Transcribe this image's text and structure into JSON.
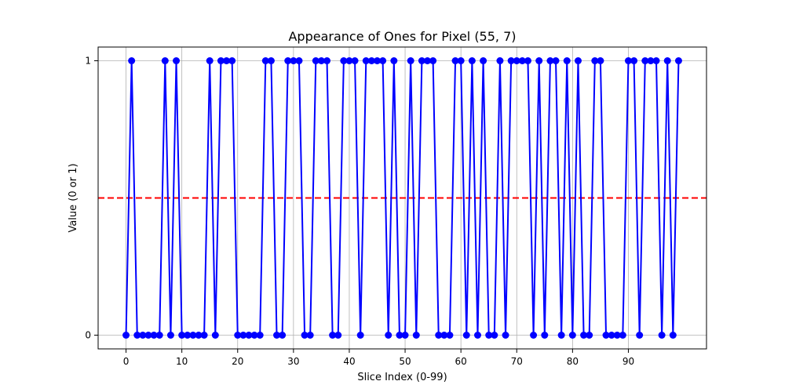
{
  "chart_data": {
    "type": "line",
    "title": "Appearance of Ones for Pixel (55, 7)",
    "xlabel": "Slice Index (0-99)",
    "ylabel": "Value (0 or 1)",
    "xlim": [
      -5,
      104
    ],
    "ylim": [
      -0.05,
      1.05
    ],
    "x_ticks": [
      0,
      10,
      20,
      30,
      40,
      50,
      60,
      70,
      80,
      90
    ],
    "y_ticks": [
      0,
      1
    ],
    "grid": true,
    "threshold": {
      "value": 0.5,
      "color": "#ff0000",
      "style": "dashed"
    },
    "series": [
      {
        "color": "#0000ff",
        "marker": "circle",
        "x": [
          0,
          1,
          2,
          3,
          4,
          5,
          6,
          7,
          8,
          9,
          10,
          11,
          12,
          13,
          14,
          15,
          16,
          17,
          18,
          19,
          20,
          21,
          22,
          23,
          24,
          25,
          26,
          27,
          28,
          29,
          30,
          31,
          32,
          33,
          34,
          35,
          36,
          37,
          38,
          39,
          40,
          41,
          42,
          43,
          44,
          45,
          46,
          47,
          48,
          49,
          50,
          51,
          52,
          53,
          54,
          55,
          56,
          57,
          58,
          59,
          60,
          61,
          62,
          63,
          64,
          65,
          66,
          67,
          68,
          69,
          70,
          71,
          72,
          73,
          74,
          75,
          76,
          77,
          78,
          79,
          80,
          81,
          82,
          83,
          84,
          85,
          86,
          87,
          88,
          89,
          90,
          91,
          92,
          93,
          94,
          95,
          96,
          97,
          98,
          99
        ],
        "values": [
          0,
          1,
          0,
          0,
          0,
          0,
          0,
          1,
          0,
          1,
          0,
          0,
          0,
          0,
          0,
          1,
          0,
          1,
          1,
          1,
          0,
          0,
          0,
          0,
          0,
          1,
          1,
          0,
          0,
          1,
          1,
          1,
          0,
          0,
          1,
          1,
          1,
          0,
          0,
          1,
          1,
          1,
          0,
          1,
          1,
          1,
          1,
          0,
          1,
          0,
          0,
          1,
          0,
          1,
          1,
          1,
          0,
          0,
          0,
          1,
          1,
          0,
          1,
          0,
          1,
          0,
          0,
          1,
          0,
          1,
          1,
          1,
          1,
          0,
          1,
          0,
          1,
          1,
          0,
          1,
          0,
          1,
          0,
          0,
          1,
          1,
          0,
          0,
          0,
          0,
          1,
          1,
          0,
          1,
          1,
          1,
          0,
          1,
          0,
          1
        ]
      }
    ]
  }
}
